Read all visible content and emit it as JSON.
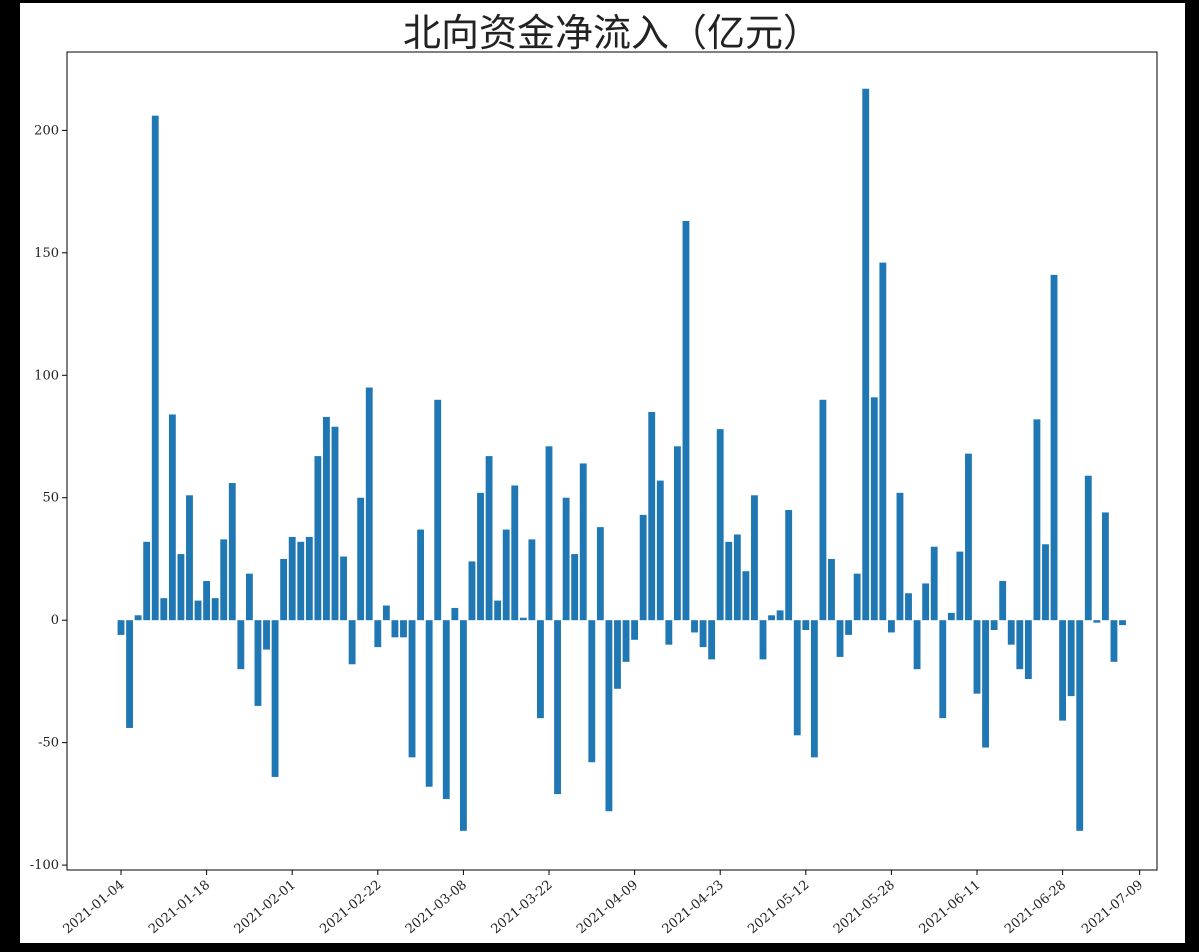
{
  "chart_data": {
    "type": "bar",
    "title": "北向资金净流入（亿元）",
    "categories": [
      "2021-01-04",
      null,
      null,
      null,
      null,
      null,
      null,
      null,
      null,
      null,
      "2021-01-18",
      null,
      null,
      null,
      null,
      null,
      null,
      null,
      null,
      null,
      "2021-02-01",
      null,
      null,
      null,
      null,
      null,
      null,
      null,
      null,
      null,
      "2021-02-22",
      null,
      null,
      null,
      null,
      null,
      null,
      null,
      null,
      null,
      "2021-03-08",
      null,
      null,
      null,
      null,
      null,
      null,
      null,
      null,
      null,
      "2021-03-22",
      null,
      null,
      null,
      null,
      null,
      null,
      null,
      null,
      null,
      "2021-04-09",
      null,
      null,
      null,
      null,
      null,
      null,
      null,
      null,
      null,
      "2021-04-23",
      null,
      null,
      null,
      null,
      null,
      null,
      null,
      null,
      null,
      "2021-05-12",
      null,
      null,
      null,
      null,
      null,
      null,
      null,
      null,
      null,
      "2021-05-28",
      null,
      null,
      null,
      null,
      null,
      null,
      null,
      null,
      null,
      "2021-06-11",
      null,
      null,
      null,
      null,
      null,
      null,
      null,
      null,
      null,
      "2021-06-28",
      null,
      null,
      null,
      null,
      null,
      null,
      null,
      null,
      "2021-07-09"
    ],
    "values": [
      -6,
      -44,
      2,
      32,
      206,
      9,
      84,
      27,
      51,
      8,
      16,
      9,
      33,
      56,
      -20,
      19,
      -35,
      -12,
      -64,
      25,
      34,
      32,
      34,
      67,
      83,
      79,
      26,
      -18,
      50,
      95,
      -11,
      6,
      -7,
      -7,
      -56,
      37,
      -68,
      90,
      -73,
      5,
      -86,
      24,
      52,
      67,
      8,
      37,
      55,
      1,
      33,
      -40,
      71,
      -71,
      50,
      27,
      64,
      -58,
      38,
      -78,
      -28,
      -17,
      -8,
      43,
      85,
      57,
      -10,
      71,
      163,
      -5,
      -11,
      -16,
      78,
      32,
      35,
      20,
      51,
      -16,
      2,
      4,
      45,
      -47,
      -4,
      -56,
      90,
      25,
      -15,
      -6,
      19,
      217,
      91,
      146,
      -5,
      52,
      11,
      -20,
      15,
      30,
      -40,
      3,
      28,
      68,
      -30,
      -52,
      -4,
      16,
      -10,
      -20,
      -24,
      82,
      31,
      141,
      -41,
      -31,
      -86,
      59,
      -1,
      44,
      -17,
      -2,
      null,
      null
    ],
    "color": "#1f77b4",
    "ylim": [
      -102,
      232
    ],
    "yticks": [
      -100,
      -50,
      0,
      50,
      100,
      150,
      200
    ]
  }
}
